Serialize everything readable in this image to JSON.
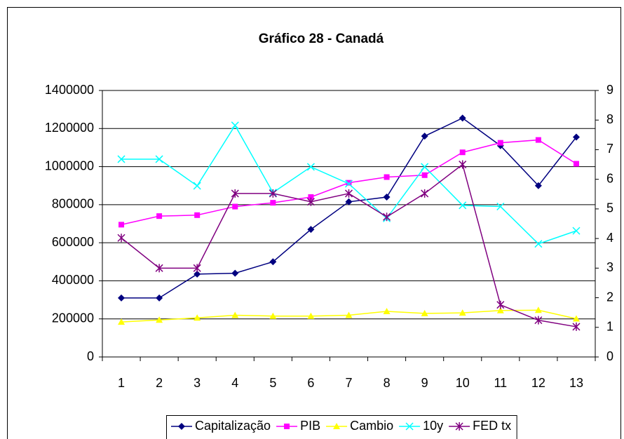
{
  "chart_data": {
    "type": "line",
    "title": "Gráfico 28 - Canadá",
    "categories": [
      "1",
      "2",
      "3",
      "4",
      "5",
      "6",
      "7",
      "8",
      "9",
      "10",
      "11",
      "12",
      "13"
    ],
    "ylim": [
      0,
      1400000
    ],
    "yticks": [
      0,
      200000,
      400000,
      600000,
      800000,
      1000000,
      1200000,
      1400000
    ],
    "y2lim": [
      0,
      9
    ],
    "y2ticks": [
      0,
      1,
      2,
      3,
      4,
      5,
      6,
      7,
      8,
      9
    ],
    "grid": true,
    "legend": "bottom",
    "series": [
      {
        "name": "Capitalização",
        "color": "#000080",
        "marker": "diamond",
        "values": [
          310000,
          310000,
          435000,
          440000,
          500000,
          670000,
          815000,
          840000,
          1160000,
          1255000,
          1110000,
          900000,
          1155000
        ]
      },
      {
        "name": "PIB",
        "color": "#ff00ff",
        "marker": "square",
        "values": [
          695000,
          740000,
          745000,
          790000,
          810000,
          840000,
          915000,
          945000,
          955000,
          1075000,
          1125000,
          1140000,
          1015000
        ]
      },
      {
        "name": "Cambio",
        "color": "#ffff00",
        "marker": "triangle",
        "axis": "y2",
        "values": [
          1.18,
          1.25,
          1.32,
          1.41,
          1.38,
          1.38,
          1.41,
          1.54,
          1.47,
          1.49,
          1.57,
          1.58,
          1.29
        ]
      },
      {
        "name": "10y",
        "color": "#00ffff",
        "marker": "x",
        "axis": "y2",
        "values": [
          6.68,
          6.68,
          5.78,
          7.82,
          5.55,
          6.42,
          5.85,
          4.68,
          6.42,
          5.12,
          5.08,
          3.82,
          4.26
        ]
      },
      {
        "name": "FED tx",
        "color": "#800080",
        "marker": "star",
        "axis": "y2",
        "values": [
          4.02,
          3.0,
          3.0,
          5.52,
          5.52,
          5.24,
          5.52,
          4.73,
          5.52,
          6.5,
          1.76,
          1.24,
          1.02
        ]
      }
    ]
  }
}
